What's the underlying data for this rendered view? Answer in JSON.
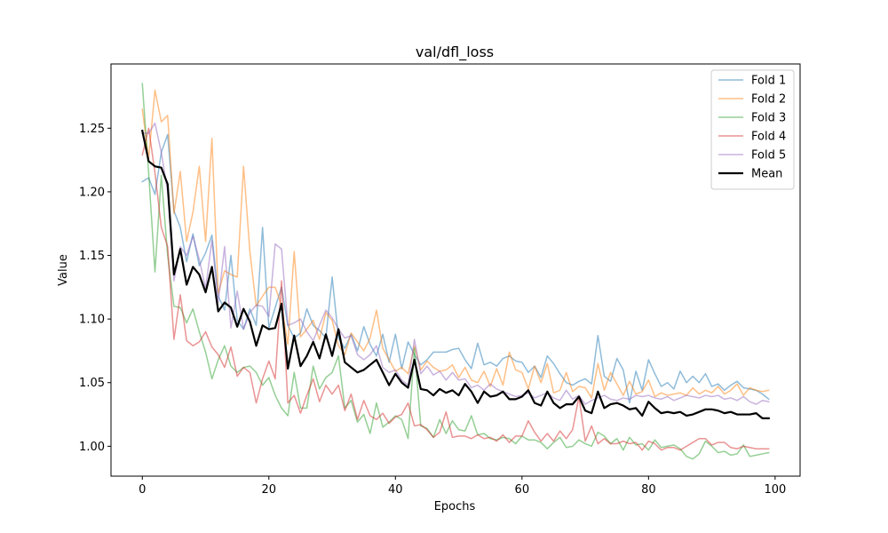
{
  "chart_data": {
    "type": "line",
    "title": "val/dfl_loss",
    "xlabel": "Epochs",
    "ylabel": "Value",
    "xlim": [
      -4.95,
      103.95
    ],
    "ylim": [
      0.9765,
      1.3005
    ],
    "xticks": [
      0,
      20,
      40,
      60,
      80,
      100
    ],
    "yticks": [
      1.0,
      1.05,
      1.1,
      1.15,
      1.2,
      1.25
    ],
    "xtick_labels": [
      "0",
      "20",
      "40",
      "60",
      "80",
      "100"
    ],
    "ytick_labels": [
      "1.00",
      "1.05",
      "1.10",
      "1.15",
      "1.20",
      "1.25"
    ],
    "legend_position": "upper right",
    "x": [
      0,
      1,
      2,
      3,
      4,
      5,
      6,
      7,
      8,
      9,
      10,
      11,
      12,
      13,
      14,
      15,
      16,
      17,
      18,
      19,
      20,
      21,
      22,
      23,
      24,
      25,
      26,
      27,
      28,
      29,
      30,
      31,
      32,
      33,
      34,
      35,
      36,
      37,
      38,
      39,
      40,
      41,
      42,
      43,
      44,
      45,
      46,
      47,
      48,
      49,
      50,
      51,
      52,
      53,
      54,
      55,
      56,
      57,
      58,
      59,
      60,
      61,
      62,
      63,
      64,
      65,
      66,
      67,
      68,
      69,
      70,
      71,
      72,
      73,
      74,
      75,
      76,
      77,
      78,
      79,
      80,
      81,
      82,
      83,
      84,
      85,
      86,
      87,
      88,
      89,
      90,
      91,
      92,
      93,
      94,
      95,
      96,
      97,
      98,
      99
    ],
    "series": [
      {
        "name": "Fold 1",
        "color": "#1f77b4",
        "alpha": 0.5,
        "width": 1.5,
        "values": [
          1.208,
          1.211,
          1.198,
          1.231,
          1.245,
          1.185,
          1.172,
          1.145,
          1.167,
          1.142,
          1.152,
          1.166,
          1.118,
          1.107,
          1.15,
          1.099,
          1.092,
          1.108,
          1.095,
          1.172,
          1.093,
          1.109,
          1.125,
          1.095,
          1.085,
          1.089,
          1.108,
          1.095,
          1.091,
          1.085,
          1.133,
          1.085,
          1.077,
          1.088,
          1.075,
          1.094,
          1.08,
          1.071,
          1.088,
          1.066,
          1.088,
          1.061,
          1.082,
          1.072,
          1.064,
          1.068,
          1.074,
          1.074,
          1.074,
          1.076,
          1.077,
          1.068,
          1.061,
          1.081,
          1.064,
          1.066,
          1.063,
          1.069,
          1.071,
          1.067,
          1.066,
          1.058,
          1.063,
          1.054,
          1.071,
          1.065,
          1.057,
          1.05,
          1.048,
          1.051,
          1.053,
          1.049,
          1.087,
          1.055,
          1.051,
          1.069,
          1.06,
          1.034,
          1.059,
          1.044,
          1.068,
          1.057,
          1.047,
          1.05,
          1.045,
          1.059,
          1.05,
          1.055,
          1.05,
          1.057,
          1.047,
          1.049,
          1.044,
          1.048,
          1.051,
          1.046,
          1.045,
          1.044,
          1.041,
          1.037
        ]
      },
      {
        "name": "Fold 2",
        "color": "#ff7f0e",
        "alpha": 0.5,
        "width": 1.5,
        "values": [
          1.265,
          1.226,
          1.28,
          1.255,
          1.26,
          1.183,
          1.216,
          1.161,
          1.184,
          1.22,
          1.161,
          1.242,
          1.12,
          1.138,
          1.135,
          1.133,
          1.22,
          1.153,
          1.11,
          1.118,
          1.125,
          1.125,
          1.111,
          1.08,
          1.153,
          1.086,
          1.092,
          1.099,
          1.084,
          1.105,
          1.099,
          1.079,
          1.072,
          1.089,
          1.082,
          1.075,
          1.085,
          1.107,
          1.077,
          1.068,
          1.059,
          1.062,
          1.057,
          1.079,
          1.06,
          1.067,
          1.062,
          1.059,
          1.06,
          1.064,
          1.054,
          1.062,
          1.052,
          1.05,
          1.059,
          1.047,
          1.061,
          1.048,
          1.074,
          1.06,
          1.058,
          1.045,
          1.063,
          1.05,
          1.065,
          1.042,
          1.044,
          1.058,
          1.043,
          1.047,
          1.046,
          1.038,
          1.065,
          1.044,
          1.058,
          1.049,
          1.04,
          1.051,
          1.041,
          1.043,
          1.052,
          1.039,
          1.042,
          1.04,
          1.041,
          1.042,
          1.04,
          1.046,
          1.041,
          1.044,
          1.042,
          1.047,
          1.041,
          1.044,
          1.049,
          1.04,
          1.046,
          1.044,
          1.043,
          1.044
        ]
      },
      {
        "name": "Fold 3",
        "color": "#2ca02c",
        "alpha": 0.5,
        "width": 1.5,
        "values": [
          1.285,
          1.215,
          1.137,
          1.213,
          1.15,
          1.11,
          1.109,
          1.097,
          1.108,
          1.09,
          1.074,
          1.053,
          1.068,
          1.079,
          1.063,
          1.058,
          1.062,
          1.063,
          1.058,
          1.048,
          1.054,
          1.04,
          1.03,
          1.024,
          1.058,
          1.03,
          1.03,
          1.063,
          1.045,
          1.054,
          1.058,
          1.071,
          1.03,
          1.036,
          1.019,
          1.025,
          1.01,
          1.034,
          1.015,
          1.019,
          1.024,
          1.021,
          1.006,
          1.077,
          1.016,
          1.014,
          1.007,
          1.021,
          1.01,
          1.02,
          1.013,
          1.012,
          1.024,
          1.009,
          1.01,
          1.006,
          1.005,
          1.007,
          1.006,
          1.002,
          1.008,
          1.005,
          1.005,
          1.003,
          0.998,
          1.003,
          1.007,
          0.999,
          1.0,
          1.005,
          1.002,
          1.0,
          1.011,
          1.008,
          1.002,
          1.006,
          0.997,
          1.007,
          1.001,
          1.002,
          0.997,
          1.005,
          0.999,
          1.0,
          1.001,
          0.998,
          0.992,
          0.99,
          0.994,
          1.004,
          1.0,
          0.995,
          0.996,
          0.993,
          0.994,
          1.001,
          0.992,
          0.993,
          0.994,
          0.995
        ]
      },
      {
        "name": "Fold 4",
        "color": "#d62728",
        "alpha": 0.5,
        "width": 1.5,
        "values": [
          1.229,
          1.25,
          1.215,
          1.172,
          1.157,
          1.084,
          1.119,
          1.083,
          1.079,
          1.082,
          1.09,
          1.078,
          1.072,
          1.062,
          1.078,
          1.055,
          1.062,
          1.058,
          1.034,
          1.053,
          1.067,
          1.053,
          1.13,
          1.034,
          1.04,
          1.026,
          1.04,
          1.053,
          1.035,
          1.048,
          1.041,
          1.048,
          1.028,
          1.041,
          1.021,
          1.036,
          1.024,
          1.021,
          1.026,
          1.018,
          1.023,
          1.025,
          1.034,
          1.016,
          1.017,
          1.013,
          1.007,
          1.011,
          1.027,
          1.007,
          1.008,
          1.008,
          1.006,
          1.009,
          1.006,
          1.007,
          1.004,
          1.009,
          1.003,
          1.008,
          1.008,
          1.02,
          1.011,
          1.004,
          1.01,
          1.004,
          1.012,
          1.006,
          1.013,
          1.039,
          1.004,
          1.016,
          1.002,
          1.006,
          1.002,
          1.002,
          1.004,
          1.002,
          1.003,
          0.997,
          1.004,
          1.002,
          0.997,
          0.999,
          0.999,
          0.997,
          1.0,
          1.003,
          1.006,
          1.006,
          1.001,
          1.003,
          1.003,
          0.999,
          0.998,
          1.0,
          0.999,
          0.998,
          0.998,
          0.998
        ]
      },
      {
        "name": "Fold 5",
        "color": "#9467bd",
        "alpha": 0.5,
        "width": 1.5,
        "values": [
          1.246,
          1.246,
          1.254,
          1.231,
          1.2,
          1.13,
          1.157,
          1.15,
          1.165,
          1.147,
          1.124,
          1.162,
          1.113,
          1.157,
          1.093,
          1.122,
          1.092,
          1.105,
          1.111,
          1.11,
          1.102,
          1.159,
          1.155,
          1.095,
          1.097,
          1.1,
          1.09,
          1.083,
          1.095,
          1.107,
          1.101,
          1.092,
          1.085,
          1.087,
          1.072,
          1.068,
          1.072,
          1.079,
          1.062,
          1.058,
          1.06,
          1.052,
          1.048,
          1.084,
          1.057,
          1.063,
          1.056,
          1.059,
          1.052,
          1.058,
          1.052,
          1.053,
          1.046,
          1.048,
          1.044,
          1.049,
          1.045,
          1.043,
          1.041,
          1.039,
          1.04,
          1.042,
          1.038,
          1.04,
          1.042,
          1.038,
          1.036,
          1.044,
          1.037,
          1.04,
          1.033,
          1.036,
          1.038,
          1.04,
          1.037,
          1.036,
          1.038,
          1.037,
          1.04,
          1.039,
          1.04,
          1.038,
          1.037,
          1.039,
          1.036,
          1.038,
          1.04,
          1.039,
          1.038,
          1.04,
          1.039,
          1.04,
          1.037,
          1.038,
          1.036,
          1.039,
          1.035,
          1.033,
          1.036,
          1.035
        ]
      },
      {
        "name": "Mean",
        "color": "#000000",
        "alpha": 1.0,
        "width": 2.2,
        "values": [
          1.248,
          1.224,
          1.22,
          1.219,
          1.206,
          1.135,
          1.155,
          1.127,
          1.141,
          1.135,
          1.121,
          1.141,
          1.106,
          1.113,
          1.109,
          1.094,
          1.108,
          1.098,
          1.079,
          1.095,
          1.092,
          1.093,
          1.112,
          1.061,
          1.087,
          1.063,
          1.071,
          1.082,
          1.069,
          1.088,
          1.071,
          1.092,
          1.066,
          1.062,
          1.058,
          1.06,
          1.064,
          1.068,
          1.058,
          1.048,
          1.057,
          1.05,
          1.046,
          1.068,
          1.045,
          1.044,
          1.04,
          1.045,
          1.042,
          1.044,
          1.04,
          1.049,
          1.043,
          1.034,
          1.043,
          1.039,
          1.04,
          1.043,
          1.037,
          1.037,
          1.039,
          1.044,
          1.034,
          1.032,
          1.043,
          1.034,
          1.03,
          1.033,
          1.033,
          1.039,
          1.028,
          1.026,
          1.043,
          1.03,
          1.033,
          1.034,
          1.032,
          1.029,
          1.03,
          1.024,
          1.035,
          1.03,
          1.026,
          1.027,
          1.026,
          1.027,
          1.024,
          1.025,
          1.027,
          1.029,
          1.029,
          1.028,
          1.026,
          1.027,
          1.025,
          1.025,
          1.025,
          1.026,
          1.022,
          1.022
        ]
      }
    ]
  }
}
